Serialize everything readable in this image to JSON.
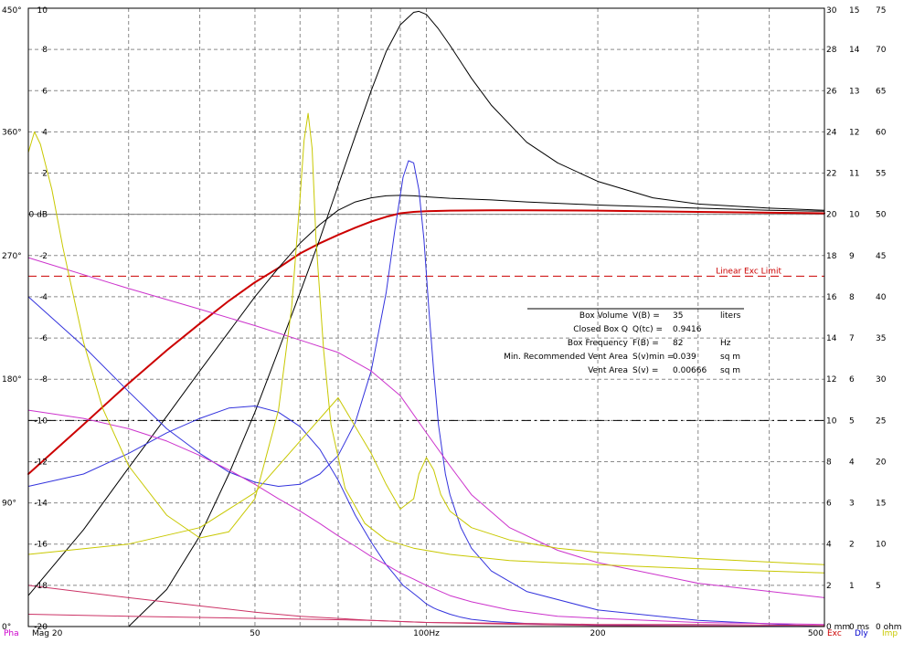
{
  "chart_data": {
    "type": "line",
    "x_scale": "log",
    "xlim": [
      20,
      500
    ],
    "x_ticks": [
      {
        "value": 20,
        "label": "Mag 20"
      },
      {
        "value": 50,
        "label": "50"
      },
      {
        "value": 100,
        "label": "100Hz"
      },
      {
        "value": 200,
        "label": "200"
      },
      {
        "value": 500,
        "label": "500"
      }
    ],
    "x_grid": [
      20,
      30,
      40,
      50,
      60,
      70,
      80,
      90,
      100,
      200,
      300,
      400,
      500
    ],
    "ylim": [
      -20,
      10
    ],
    "grid": true,
    "axes": {
      "magnitude": {
        "ticks": [
          {
            "v": 10,
            "l": "10"
          },
          {
            "v": 8,
            "l": "8"
          },
          {
            "v": 6,
            "l": "6"
          },
          {
            "v": 4,
            "l": "4"
          },
          {
            "v": 2,
            "l": "2"
          },
          {
            "v": 0,
            "l": "0 dB"
          },
          {
            "v": -2,
            "l": "-2"
          },
          {
            "v": -4,
            "l": "-4"
          },
          {
            "v": -6,
            "l": "-6"
          },
          {
            "v": -8,
            "l": "-8"
          },
          {
            "v": -10,
            "l": "-10"
          },
          {
            "v": -12,
            "l": "-12"
          },
          {
            "v": -14,
            "l": "-14"
          },
          {
            "v": -16,
            "l": "-16"
          },
          {
            "v": -18,
            "l": "-18"
          },
          {
            "v": -20,
            "l": "-20"
          }
        ]
      },
      "phase": {
        "ticks": [
          {
            "v": 10,
            "l": "450°"
          },
          {
            "v": 4,
            "l": "360°"
          },
          {
            "v": -2,
            "l": "270°"
          },
          {
            "v": -8,
            "l": "180°"
          },
          {
            "v": -14,
            "l": "90°"
          },
          {
            "v": -20,
            "l": "0°"
          }
        ]
      },
      "excursion": {
        "ticks": [
          {
            "v": 10,
            "l": "30"
          },
          {
            "v": 8,
            "l": "28"
          },
          {
            "v": 6,
            "l": "26"
          },
          {
            "v": 4,
            "l": "24"
          },
          {
            "v": 2,
            "l": "22"
          },
          {
            "v": 0,
            "l": "20"
          },
          {
            "v": -2,
            "l": "18"
          },
          {
            "v": -4,
            "l": "16"
          },
          {
            "v": -6,
            "l": "14"
          },
          {
            "v": -8,
            "l": "12"
          },
          {
            "v": -10,
            "l": "10"
          },
          {
            "v": -12,
            "l": "8"
          },
          {
            "v": -14,
            "l": "6"
          },
          {
            "v": -16,
            "l": "4"
          },
          {
            "v": -18,
            "l": "2"
          },
          {
            "v": -20,
            "l": "0 mm"
          }
        ]
      },
      "delay": {
        "ticks": [
          {
            "v": 10,
            "l": "15"
          },
          {
            "v": 8,
            "l": "14"
          },
          {
            "v": 6,
            "l": "13"
          },
          {
            "v": 4,
            "l": "12"
          },
          {
            "v": 2,
            "l": "11"
          },
          {
            "v": 0,
            "l": "10"
          },
          {
            "v": -2,
            "l": "9"
          },
          {
            "v": -4,
            "l": "8"
          },
          {
            "v": -6,
            "l": "7"
          },
          {
            "v": -8,
            "l": "6"
          },
          {
            "v": -10,
            "l": "5"
          },
          {
            "v": -12,
            "l": "4"
          },
          {
            "v": -14,
            "l": "3"
          },
          {
            "v": -16,
            "l": "2"
          },
          {
            "v": -18,
            "l": "1"
          },
          {
            "v": -20,
            "l": "0 ms"
          }
        ]
      },
      "impedance": {
        "ticks": [
          {
            "v": 10,
            "l": "75"
          },
          {
            "v": 8,
            "l": "70"
          },
          {
            "v": 6,
            "l": "65"
          },
          {
            "v": 4,
            "l": "60"
          },
          {
            "v": 2,
            "l": "55"
          },
          {
            "v": 0,
            "l": "50"
          },
          {
            "v": -2,
            "l": "45"
          },
          {
            "v": -4,
            "l": "40"
          },
          {
            "v": -6,
            "l": "35"
          },
          {
            "v": -8,
            "l": "30"
          },
          {
            "v": -10,
            "l": "25"
          },
          {
            "v": -12,
            "l": "20"
          },
          {
            "v": -14,
            "l": "15"
          },
          {
            "v": -16,
            "l": "10"
          },
          {
            "v": -18,
            "l": "5"
          },
          {
            "v": -20,
            "l": "0 ohm"
          }
        ]
      }
    },
    "axis_key": [
      {
        "label": "Pha",
        "color": "#cc00cc"
      },
      {
        "label": "Exc",
        "color": "#cc0000"
      },
      {
        "label": "Dly",
        "color": "#0000cc"
      },
      {
        "label": "Imp",
        "color": "#c8c800"
      }
    ],
    "reference_lines": [
      {
        "y": 0,
        "color": "#808080",
        "style": "solid"
      },
      {
        "y": -10,
        "color": "#000000",
        "style": "dashdot"
      },
      {
        "y": -3,
        "color": "#cc0000",
        "style": "dashed",
        "label": "Linear Exc Limit"
      }
    ],
    "series": [
      {
        "color": "#cc0000",
        "width": 2,
        "x": [
          20,
          25,
          30,
          35,
          40,
          45,
          50,
          55,
          60,
          65,
          70,
          75,
          80,
          85,
          90,
          95,
          100,
          110,
          130,
          150,
          200,
          300,
          400,
          500
        ],
        "y": [
          -12.6,
          -10.2,
          -8.2,
          -6.6,
          -5.3,
          -4.2,
          -3.3,
          -2.6,
          -1.9,
          -1.4,
          -1.0,
          -0.65,
          -0.35,
          -0.12,
          0.05,
          0.12,
          0.15,
          0.18,
          0.2,
          0.2,
          0.18,
          0.12,
          0.08,
          0.05
        ]
      },
      {
        "color": "#000000",
        "width": 1,
        "x": [
          20,
          25,
          30,
          35,
          40,
          45,
          50,
          55,
          60,
          65,
          70,
          75,
          80,
          85,
          90,
          95,
          100,
          110,
          130,
          150,
          200,
          300,
          400,
          500
        ],
        "y": [
          -18.5,
          -15.3,
          -12.3,
          -9.8,
          -7.6,
          -5.7,
          -4.0,
          -2.6,
          -1.4,
          -0.5,
          0.2,
          0.6,
          0.8,
          0.9,
          0.92,
          0.9,
          0.85,
          0.78,
          0.7,
          0.6,
          0.45,
          0.3,
          0.2,
          0.15
        ]
      },
      {
        "color": "#000000",
        "width": 1,
        "x": [
          30,
          35,
          40,
          45,
          50,
          55,
          60,
          65,
          70,
          75,
          80,
          85,
          90,
          95,
          97,
          100,
          105,
          110,
          120,
          130,
          150,
          170,
          200,
          250,
          300,
          400,
          500
        ],
        "y": [
          -20,
          -18.2,
          -15.6,
          -12.6,
          -9.6,
          -6.6,
          -3.8,
          -1.2,
          1.4,
          3.8,
          6.0,
          7.9,
          9.2,
          9.8,
          9.85,
          9.7,
          9.0,
          8.2,
          6.6,
          5.3,
          3.5,
          2.5,
          1.6,
          0.8,
          0.5,
          0.3,
          0.2
        ]
      },
      {
        "color": "#3333dd",
        "width": 1,
        "x": [
          20,
          25,
          30,
          35,
          40,
          45,
          50,
          55,
          60,
          65,
          70,
          75,
          80,
          85,
          88,
          91,
          93,
          95,
          97,
          100,
          103,
          105,
          110,
          115,
          120,
          130,
          150,
          200,
          300,
          500
        ],
        "y": [
          -13.2,
          -12.6,
          -11.6,
          -10.6,
          -9.9,
          -9.4,
          -9.3,
          -9.6,
          -10.3,
          -11.4,
          -12.9,
          -14.6,
          -15.9,
          -17.0,
          -17.5,
          -18.0,
          -18.2,
          -18.4,
          -18.6,
          -18.9,
          -19.1,
          -19.2,
          -19.4,
          -19.55,
          -19.65,
          -19.75,
          -19.85,
          -19.92,
          -19.96,
          -20.0
        ]
      },
      {
        "color": "#3333dd",
        "width": 1,
        "x": [
          20,
          25,
          30,
          35,
          40,
          45,
          50,
          55,
          60,
          65,
          70,
          75,
          80,
          85,
          88,
          91,
          93,
          95,
          97,
          99,
          101,
          103,
          105,
          108,
          110,
          115,
          120,
          130,
          150,
          200,
          300,
          500
        ],
        "y": [
          -4.0,
          -6.4,
          -8.6,
          -10.4,
          -11.6,
          -12.5,
          -13.0,
          -13.2,
          -13.1,
          -12.6,
          -11.7,
          -10.1,
          -7.6,
          -3.8,
          -0.8,
          1.8,
          2.6,
          2.5,
          1.2,
          -1.2,
          -4.6,
          -7.6,
          -10.2,
          -12.6,
          -13.6,
          -15.2,
          -16.2,
          -17.3,
          -18.3,
          -19.2,
          -19.7,
          -20.0
        ]
      },
      {
        "color": "#cc33cc",
        "width": 1,
        "x": [
          20,
          30,
          40,
          50,
          60,
          70,
          80,
          90,
          100,
          110,
          120,
          140,
          170,
          200,
          300,
          500
        ],
        "y": [
          -2.1,
          -3.6,
          -4.6,
          -5.4,
          -6.1,
          -6.7,
          -7.6,
          -8.8,
          -10.6,
          -12.2,
          -13.6,
          -15.2,
          -16.3,
          -16.9,
          -17.9,
          -18.6
        ]
      },
      {
        "color": "#cc33cc",
        "width": 1,
        "x": [
          20,
          25,
          30,
          35,
          40,
          45,
          50,
          55,
          60,
          65,
          70,
          75,
          80,
          85,
          90,
          95,
          100,
          110,
          120,
          140,
          170,
          200,
          300,
          500
        ],
        "y": [
          -9.5,
          -9.9,
          -10.4,
          -11.0,
          -11.7,
          -12.4,
          -13.1,
          -13.8,
          -14.4,
          -15.0,
          -15.6,
          -16.1,
          -16.6,
          -17.0,
          -17.4,
          -17.7,
          -18.0,
          -18.5,
          -18.8,
          -19.2,
          -19.5,
          -19.6,
          -19.8,
          -19.9
        ]
      },
      {
        "color": "#cc3366",
        "width": 1,
        "x": [
          20,
          30,
          40,
          50,
          60,
          80,
          100,
          150,
          200,
          300,
          500
        ],
        "y": [
          -18.0,
          -18.6,
          -19.0,
          -19.3,
          -19.5,
          -19.7,
          -19.8,
          -19.9,
          -19.95,
          -19.97,
          -20.0
        ]
      },
      {
        "color": "#cc3366",
        "width": 1,
        "x": [
          20,
          30,
          50,
          80,
          100,
          150,
          200,
          300,
          500
        ],
        "y": [
          -19.4,
          -19.5,
          -19.6,
          -19.7,
          -19.8,
          -19.85,
          -19.9,
          -19.9,
          -19.95
        ]
      },
      {
        "color": "#c8c800",
        "width": 1,
        "x": [
          20,
          20.5,
          21,
          22,
          23,
          25,
          27,
          30,
          35,
          40,
          45,
          50,
          55,
          58,
          60,
          61,
          62,
          63,
          64,
          66,
          68,
          72,
          78,
          85,
          95,
          110,
          140,
          200,
          300,
          500
        ],
        "y": [
          3.0,
          4.0,
          3.4,
          1.2,
          -1.6,
          -6.2,
          -9.4,
          -12.2,
          -14.6,
          -15.7,
          -15.4,
          -13.8,
          -9.5,
          -4.5,
          0.8,
          3.6,
          4.9,
          3.2,
          -1.2,
          -6.6,
          -10.2,
          -13.3,
          -15.0,
          -15.8,
          -16.2,
          -16.5,
          -16.8,
          -17.0,
          -17.2,
          -17.4
        ]
      },
      {
        "color": "#c8c800",
        "width": 1,
        "x": [
          20,
          30,
          40,
          50,
          60,
          70,
          80,
          85,
          90,
          95,
          97,
          100,
          103,
          106,
          110,
          120,
          140,
          170,
          200,
          300,
          500
        ],
        "y": [
          -16.5,
          -16.0,
          -15.2,
          -13.5,
          -11.0,
          -8.9,
          -11.6,
          -13.1,
          -14.3,
          -13.8,
          -12.6,
          -11.8,
          -12.4,
          -13.6,
          -14.4,
          -15.2,
          -15.8,
          -16.2,
          -16.4,
          -16.7,
          -17.0
        ]
      }
    ],
    "annotation": {
      "rows": [
        {
          "label": "Box Volume",
          "sym": "V(B) =",
          "value": "35",
          "unit": "liters"
        },
        {
          "label": "Closed Box Q",
          "sym": "Q(tc) =",
          "value": "0.9416",
          "unit": ""
        },
        {
          "label": "Box Frequency",
          "sym": "F(B) =",
          "value": "82",
          "unit": "Hz"
        },
        {
          "label": "Min. Recommended Vent Area",
          "sym": "S(v)min =",
          "value": "0.039",
          "unit": "sq m"
        },
        {
          "label": "Vent Area",
          "sym": "S(v) =",
          "value": "0.00666",
          "unit": "sq m"
        }
      ]
    }
  }
}
